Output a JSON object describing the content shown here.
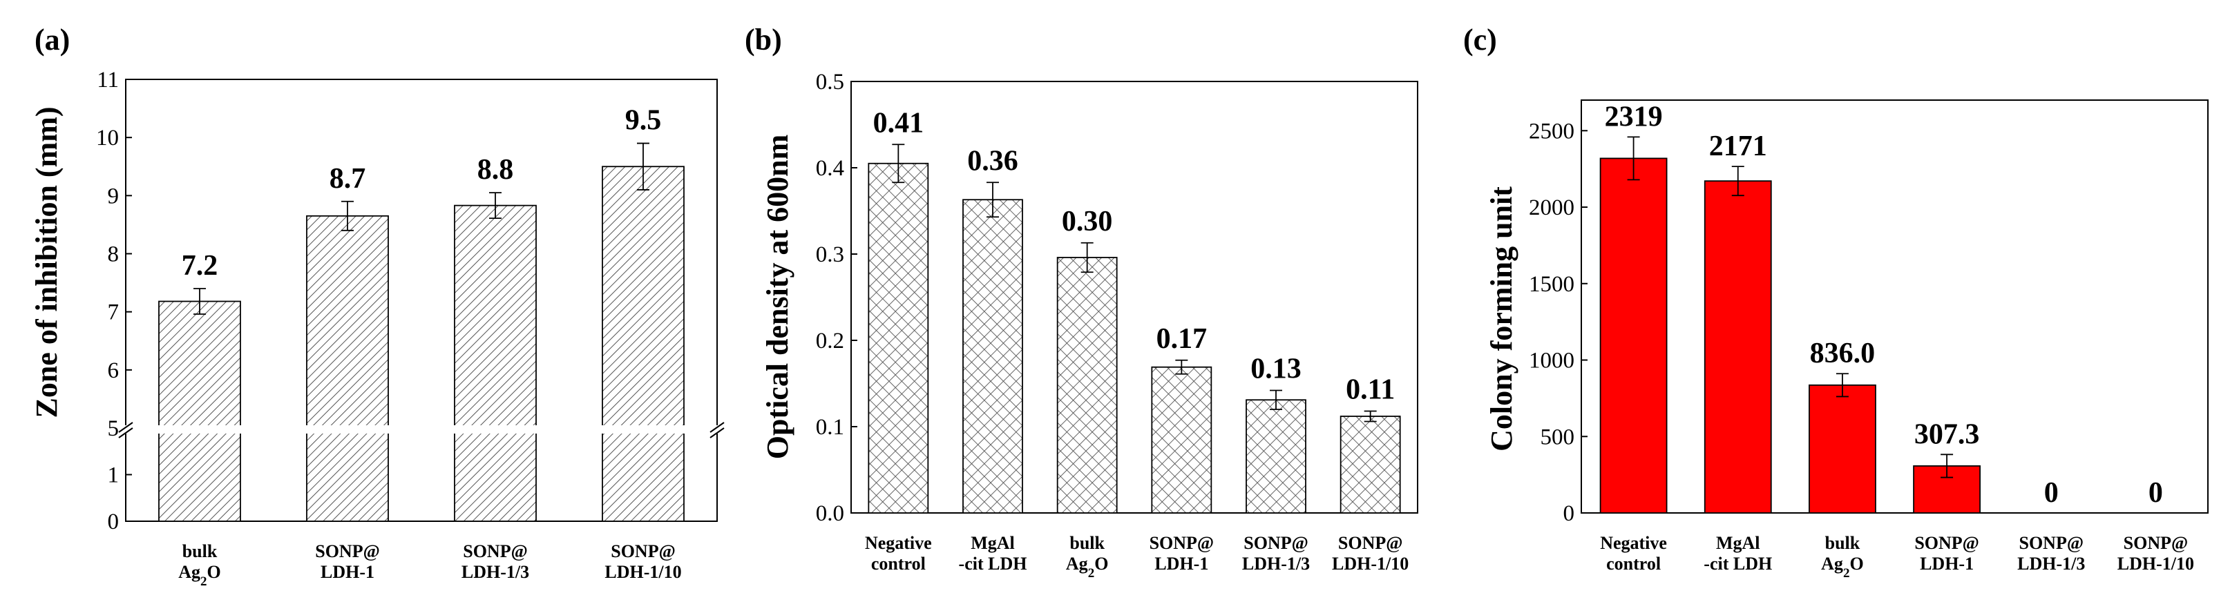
{
  "chart_data": [
    {
      "panel": "(a)",
      "type": "bar",
      "ylabel": "Zone of inhibition (mm)",
      "categories": [
        [
          "bulk",
          "Ag2O"
        ],
        [
          "SONP@",
          "LDH-1"
        ],
        [
          "SONP@",
          "LDH-1/3"
        ],
        [
          "SONP@",
          "LDH-1/10"
        ]
      ],
      "values": [
        7.18,
        8.65,
        8.83,
        9.5
      ],
      "errors": [
        0.22,
        0.25,
        0.22,
        0.4
      ],
      "data_labels": [
        "7.2",
        "8.7",
        "8.8",
        "9.5"
      ],
      "axis_break": {
        "lower": [
          0,
          2
        ],
        "upper": [
          5,
          11
        ]
      },
      "yticks_lower": [
        "0",
        "1"
      ],
      "yticks_upper": [
        "5",
        "6",
        "7",
        "8",
        "9",
        "10",
        "11"
      ],
      "bar_fill": "#ffffff",
      "pattern": "diagonal-hatch",
      "pattern_color": "#555555"
    },
    {
      "panel": "(b)",
      "type": "bar",
      "ylabel": "Optical density at 600nm",
      "categories": [
        [
          "Negative",
          "control"
        ],
        [
          "MgAl",
          "-cit LDH"
        ],
        [
          "bulk",
          "Ag2O"
        ],
        [
          "SONP@",
          "LDH-1"
        ],
        [
          "SONP@",
          "LDH-1/3"
        ],
        [
          "SONP@",
          "LDH-1/10"
        ]
      ],
      "values": [
        0.405,
        0.363,
        0.296,
        0.169,
        0.131,
        0.112
      ],
      "errors": [
        0.022,
        0.02,
        0.017,
        0.008,
        0.011,
        0.006
      ],
      "data_labels": [
        "0.41",
        "0.36",
        "0.30",
        "0.17",
        "0.13",
        "0.11"
      ],
      "ylim": [
        0,
        0.5
      ],
      "yticks": [
        "0.0",
        "0.1",
        "0.2",
        "0.3",
        "0.4",
        "0.5"
      ],
      "bar_fill": "#ffffff",
      "pattern": "cross-hatch",
      "pattern_color": "#555555"
    },
    {
      "panel": "(c)",
      "type": "bar",
      "ylabel": "Colony forming unit",
      "categories": [
        [
          "Negative",
          "control"
        ],
        [
          "MgAl",
          "-cit LDH"
        ],
        [
          "bulk",
          "Ag2O"
        ],
        [
          "SONP@",
          "LDH-1"
        ],
        [
          "SONP@",
          "LDH-1/3"
        ],
        [
          "SONP@",
          "LDH-1/10"
        ]
      ],
      "values": [
        2319,
        2171,
        836.0,
        307.3,
        0,
        0
      ],
      "errors": [
        140,
        95,
        75,
        75,
        0,
        0
      ],
      "data_labels": [
        "2319",
        "2171",
        "836.0",
        "307.3",
        "0",
        "0"
      ],
      "ylim": [
        0,
        2700
      ],
      "yticks": [
        "0",
        "500",
        "1000",
        "1500",
        "2000",
        "2500"
      ],
      "bar_fill": "#ff0000"
    }
  ]
}
